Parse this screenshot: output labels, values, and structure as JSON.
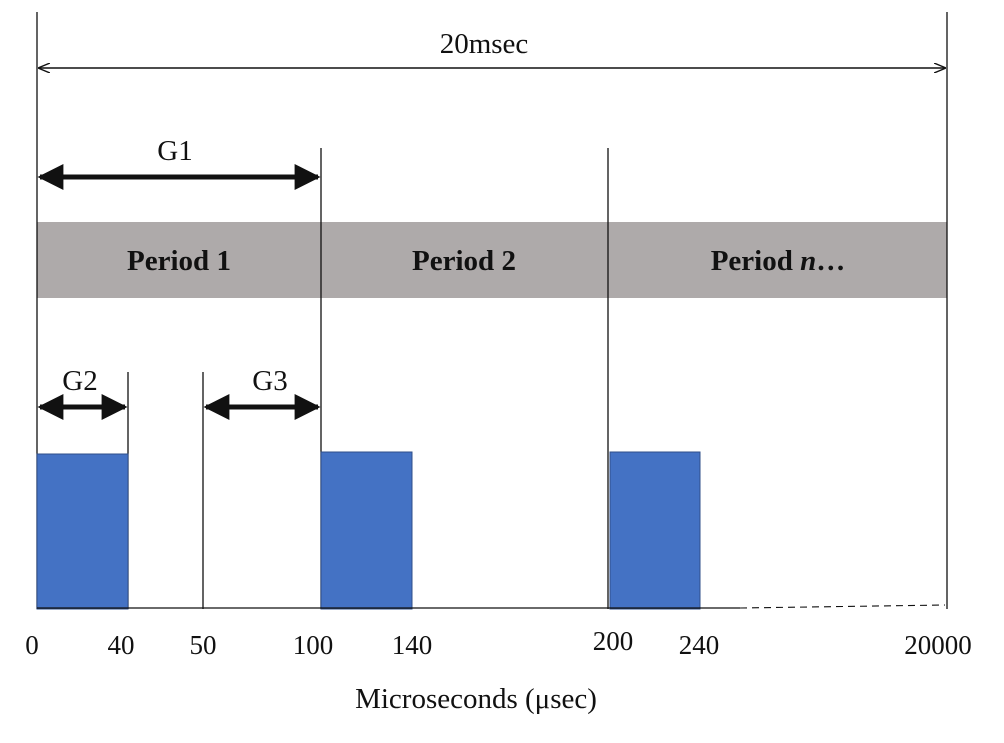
{
  "diagram": {
    "span_label": "20msec",
    "periods": [
      {
        "label": "Period 1"
      },
      {
        "label": "Period 2"
      },
      {
        "label_main": "Period ",
        "label_italic": "n",
        "label_tail": "…"
      }
    ],
    "gaps": {
      "g1": "G1",
      "g2": "G2",
      "g3": "G3"
    },
    "pulses": [
      {
        "start": 0,
        "end": 40
      },
      {
        "start": 100,
        "end": 140
      },
      {
        "start": 200,
        "end": 240
      }
    ],
    "axis": {
      "title": "Microseconds (μsec)",
      "ticks": [
        "0",
        "40",
        "50",
        "100",
        "140",
        "200",
        "240",
        "20000"
      ]
    },
    "colors": {
      "period_band": "#aeaaaa",
      "pulse": "#4472c4",
      "line": "#111111"
    }
  }
}
